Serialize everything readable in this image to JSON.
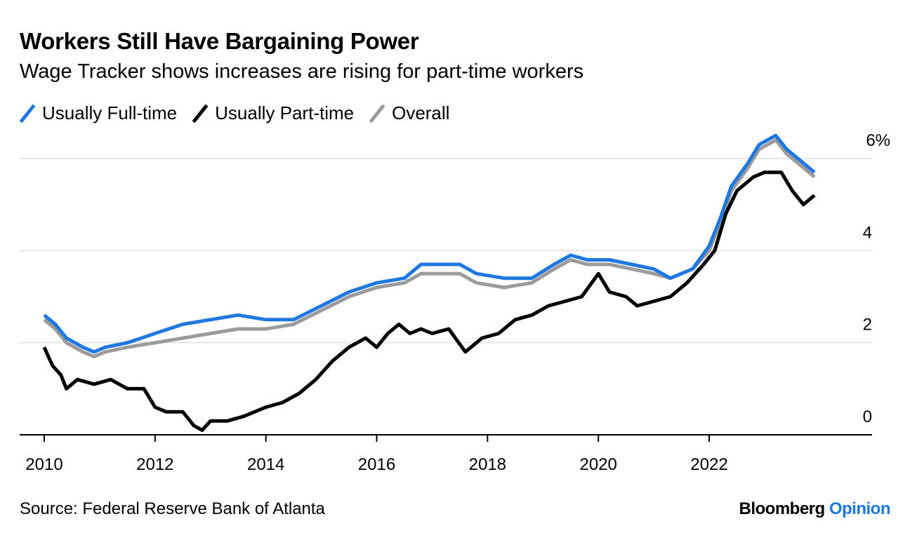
{
  "chart_data": {
    "type": "line",
    "title": "Workers Still Have Bargaining Power",
    "subtitle": "Wage Tracker shows increases are rising for part-time workers",
    "source": "Source: Federal Reserve Bank of Atlanta",
    "brand": "Bloomberg",
    "brand_accent": "Opinion",
    "legend_placement": "top-left",
    "grid": true,
    "x_unit": "year",
    "xlim": [
      2009.6,
      2024.5
    ],
    "ylim": [
      0,
      6
    ],
    "x_ticks": [
      2010,
      2012,
      2014,
      2016,
      2018,
      2020,
      2022
    ],
    "x_tick_labels": [
      "2010",
      "2012",
      "2014",
      "2016",
      "2018",
      "2020",
      "2022"
    ],
    "y_ticks": [
      0,
      2,
      4,
      6
    ],
    "y_tick_labels": [
      "0",
      "2",
      "4",
      "6%"
    ],
    "series": [
      {
        "name": "Usually Full-time",
        "color": "#1f77e0",
        "points": [
          [
            2010.0,
            2.6
          ],
          [
            2010.2,
            2.4
          ],
          [
            2010.4,
            2.1
          ],
          [
            2010.7,
            1.9
          ],
          [
            2010.9,
            1.8
          ],
          [
            2011.1,
            1.9
          ],
          [
            2011.5,
            2.0
          ],
          [
            2012.0,
            2.2
          ],
          [
            2012.5,
            2.4
          ],
          [
            2013.0,
            2.5
          ],
          [
            2013.5,
            2.6
          ],
          [
            2014.0,
            2.5
          ],
          [
            2014.5,
            2.5
          ],
          [
            2015.0,
            2.8
          ],
          [
            2015.5,
            3.1
          ],
          [
            2016.0,
            3.3
          ],
          [
            2016.5,
            3.4
          ],
          [
            2016.8,
            3.7
          ],
          [
            2017.5,
            3.7
          ],
          [
            2017.8,
            3.5
          ],
          [
            2018.3,
            3.4
          ],
          [
            2018.8,
            3.4
          ],
          [
            2019.2,
            3.7
          ],
          [
            2019.5,
            3.9
          ],
          [
            2019.8,
            3.8
          ],
          [
            2020.2,
            3.8
          ],
          [
            2020.6,
            3.7
          ],
          [
            2021.0,
            3.6
          ],
          [
            2021.3,
            3.4
          ],
          [
            2021.7,
            3.6
          ],
          [
            2022.0,
            4.1
          ],
          [
            2022.2,
            4.7
          ],
          [
            2022.4,
            5.4
          ],
          [
            2022.7,
            5.9
          ],
          [
            2022.9,
            6.3
          ],
          [
            2023.2,
            6.5
          ],
          [
            2023.4,
            6.2
          ],
          [
            2023.7,
            5.9
          ],
          [
            2023.9,
            5.7
          ]
        ]
      },
      {
        "name": "Usually Part-time",
        "color": "#000000",
        "points": [
          [
            2010.0,
            1.9
          ],
          [
            2010.15,
            1.5
          ],
          [
            2010.3,
            1.3
          ],
          [
            2010.4,
            1.0
          ],
          [
            2010.6,
            1.2
          ],
          [
            2010.9,
            1.1
          ],
          [
            2011.2,
            1.2
          ],
          [
            2011.5,
            1.0
          ],
          [
            2011.8,
            1.0
          ],
          [
            2012.0,
            0.6
          ],
          [
            2012.2,
            0.5
          ],
          [
            2012.5,
            0.5
          ],
          [
            2012.7,
            0.2
          ],
          [
            2012.85,
            0.1
          ],
          [
            2013.0,
            0.3
          ],
          [
            2013.3,
            0.3
          ],
          [
            2013.6,
            0.4
          ],
          [
            2014.0,
            0.6
          ],
          [
            2014.3,
            0.7
          ],
          [
            2014.6,
            0.9
          ],
          [
            2014.9,
            1.2
          ],
          [
            2015.2,
            1.6
          ],
          [
            2015.5,
            1.9
          ],
          [
            2015.8,
            2.1
          ],
          [
            2016.0,
            1.9
          ],
          [
            2016.2,
            2.2
          ],
          [
            2016.4,
            2.4
          ],
          [
            2016.6,
            2.2
          ],
          [
            2016.8,
            2.3
          ],
          [
            2017.0,
            2.2
          ],
          [
            2017.3,
            2.3
          ],
          [
            2017.6,
            1.8
          ],
          [
            2017.9,
            2.1
          ],
          [
            2018.2,
            2.2
          ],
          [
            2018.5,
            2.5
          ],
          [
            2018.8,
            2.6
          ],
          [
            2019.1,
            2.8
          ],
          [
            2019.4,
            2.9
          ],
          [
            2019.7,
            3.0
          ],
          [
            2020.0,
            3.5
          ],
          [
            2020.2,
            3.1
          ],
          [
            2020.5,
            3.0
          ],
          [
            2020.7,
            2.8
          ],
          [
            2021.0,
            2.9
          ],
          [
            2021.3,
            3.0
          ],
          [
            2021.6,
            3.3
          ],
          [
            2021.9,
            3.7
          ],
          [
            2022.1,
            4.0
          ],
          [
            2022.3,
            4.8
          ],
          [
            2022.5,
            5.3
          ],
          [
            2022.8,
            5.6
          ],
          [
            2023.0,
            5.7
          ],
          [
            2023.3,
            5.7
          ],
          [
            2023.5,
            5.3
          ],
          [
            2023.7,
            5.0
          ],
          [
            2023.9,
            5.2
          ]
        ]
      },
      {
        "name": "Overall",
        "color": "#9b9b9b",
        "points": [
          [
            2010.0,
            2.5
          ],
          [
            2010.2,
            2.3
          ],
          [
            2010.4,
            2.0
          ],
          [
            2010.7,
            1.8
          ],
          [
            2010.9,
            1.7
          ],
          [
            2011.1,
            1.8
          ],
          [
            2011.5,
            1.9
          ],
          [
            2012.0,
            2.0
          ],
          [
            2012.5,
            2.1
          ],
          [
            2013.0,
            2.2
          ],
          [
            2013.5,
            2.3
          ],
          [
            2014.0,
            2.3
          ],
          [
            2014.5,
            2.4
          ],
          [
            2015.0,
            2.7
          ],
          [
            2015.5,
            3.0
          ],
          [
            2016.0,
            3.2
          ],
          [
            2016.5,
            3.3
          ],
          [
            2016.8,
            3.5
          ],
          [
            2017.5,
            3.5
          ],
          [
            2017.8,
            3.3
          ],
          [
            2018.3,
            3.2
          ],
          [
            2018.8,
            3.3
          ],
          [
            2019.2,
            3.6
          ],
          [
            2019.5,
            3.8
          ],
          [
            2019.8,
            3.7
          ],
          [
            2020.2,
            3.7
          ],
          [
            2020.6,
            3.6
          ],
          [
            2021.0,
            3.5
          ],
          [
            2021.3,
            3.4
          ],
          [
            2021.7,
            3.6
          ],
          [
            2022.0,
            4.0
          ],
          [
            2022.2,
            4.6
          ],
          [
            2022.4,
            5.3
          ],
          [
            2022.7,
            5.8
          ],
          [
            2022.9,
            6.2
          ],
          [
            2023.2,
            6.4
          ],
          [
            2023.4,
            6.1
          ],
          [
            2023.7,
            5.8
          ],
          [
            2023.9,
            5.6
          ]
        ]
      }
    ]
  }
}
